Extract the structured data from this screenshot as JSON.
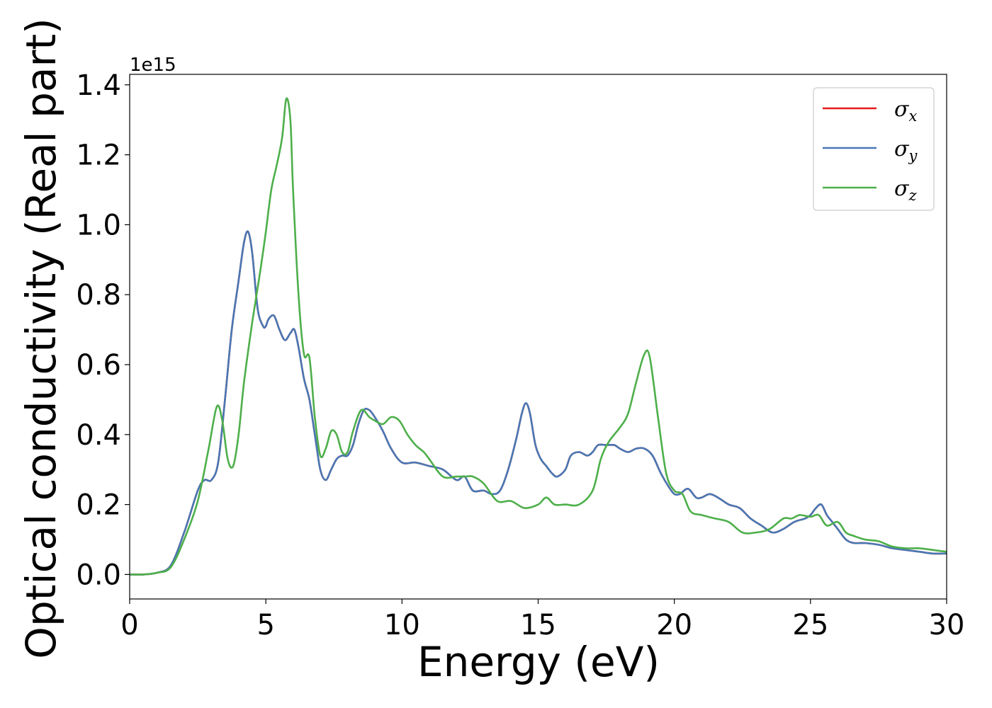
{
  "chart_data": {
    "type": "line",
    "xlabel": "Energy (eV)",
    "ylabel": "Optical conductivity (Real part)",
    "y_offset_label": "1e15",
    "xlim": [
      0,
      30
    ],
    "ylim": [
      -0.07,
      1.43
    ],
    "x_ticks": [
      0,
      5,
      10,
      15,
      20,
      25,
      30
    ],
    "x_tick_labels": [
      "0",
      "5",
      "10",
      "15",
      "20",
      "25",
      "30"
    ],
    "y_ticks": [
      0.0,
      0.2,
      0.4,
      0.6,
      0.8,
      1.0,
      1.2,
      1.4
    ],
    "y_tick_labels": [
      "0.0",
      "0.2",
      "0.4",
      "0.6",
      "0.8",
      "1.0",
      "1.2",
      "1.4"
    ],
    "grid": false,
    "legend_position": "top-right",
    "series": [
      {
        "name": "σx",
        "legend_symbol": "σ",
        "legend_subscript": "x",
        "color": "#e41a1c",
        "x": [
          0,
          0.5,
          1.0,
          1.5,
          2.0,
          2.5,
          2.75,
          3.0,
          3.25,
          3.5,
          3.75,
          4.0,
          4.2,
          4.35,
          4.5,
          4.7,
          4.9,
          5.0,
          5.1,
          5.3,
          5.5,
          5.7,
          5.9,
          6.05,
          6.2,
          6.4,
          6.6,
          6.8,
          7.0,
          7.2,
          7.4,
          7.6,
          7.8,
          8.0,
          8.2,
          8.4,
          8.6,
          8.8,
          9.0,
          9.3,
          9.6,
          10.0,
          10.5,
          11.0,
          11.5,
          12.0,
          12.3,
          12.6,
          13.0,
          13.3,
          13.6,
          13.9,
          14.2,
          14.4,
          14.55,
          14.7,
          14.9,
          15.1,
          15.3,
          15.5,
          15.7,
          16.0,
          16.2,
          16.5,
          16.8,
          17.0,
          17.2,
          17.5,
          17.8,
          18.0,
          18.3,
          18.6,
          18.9,
          19.2,
          19.5,
          19.8,
          20.0,
          20.2,
          20.5,
          20.8,
          21.0,
          21.3,
          21.6,
          22.0,
          22.4,
          22.8,
          23.2,
          23.6,
          24.0,
          24.4,
          24.8,
          25.0,
          25.2,
          25.4,
          25.6,
          25.8,
          26.0,
          26.3,
          26.6,
          27.0,
          27.5,
          28.0,
          28.5,
          29.0,
          29.5,
          30.0
        ],
        "y": [
          0.0,
          0.0,
          0.005,
          0.025,
          0.12,
          0.24,
          0.27,
          0.27,
          0.32,
          0.5,
          0.7,
          0.84,
          0.95,
          0.98,
          0.92,
          0.76,
          0.71,
          0.71,
          0.73,
          0.74,
          0.7,
          0.67,
          0.69,
          0.7,
          0.65,
          0.56,
          0.5,
          0.4,
          0.3,
          0.27,
          0.3,
          0.33,
          0.34,
          0.34,
          0.37,
          0.43,
          0.47,
          0.47,
          0.45,
          0.41,
          0.36,
          0.32,
          0.32,
          0.31,
          0.3,
          0.27,
          0.28,
          0.24,
          0.24,
          0.23,
          0.24,
          0.3,
          0.39,
          0.46,
          0.49,
          0.46,
          0.37,
          0.33,
          0.31,
          0.29,
          0.28,
          0.3,
          0.34,
          0.35,
          0.34,
          0.35,
          0.37,
          0.37,
          0.37,
          0.36,
          0.35,
          0.36,
          0.36,
          0.34,
          0.29,
          0.25,
          0.23,
          0.23,
          0.245,
          0.22,
          0.22,
          0.23,
          0.22,
          0.2,
          0.19,
          0.16,
          0.14,
          0.12,
          0.13,
          0.15,
          0.16,
          0.17,
          0.19,
          0.2,
          0.17,
          0.15,
          0.13,
          0.1,
          0.09,
          0.09,
          0.085,
          0.075,
          0.07,
          0.065,
          0.06,
          0.06
        ]
      },
      {
        "name": "σy",
        "legend_symbol": "σ",
        "legend_subscript": "y",
        "color": "#4878b4",
        "x": [
          0,
          0.5,
          1.0,
          1.5,
          2.0,
          2.5,
          2.75,
          3.0,
          3.25,
          3.5,
          3.75,
          4.0,
          4.2,
          4.35,
          4.5,
          4.7,
          4.9,
          5.0,
          5.1,
          5.3,
          5.5,
          5.7,
          5.9,
          6.05,
          6.2,
          6.4,
          6.6,
          6.8,
          7.0,
          7.2,
          7.4,
          7.6,
          7.8,
          8.0,
          8.2,
          8.4,
          8.6,
          8.8,
          9.0,
          9.3,
          9.6,
          10.0,
          10.5,
          11.0,
          11.5,
          12.0,
          12.3,
          12.6,
          13.0,
          13.3,
          13.6,
          13.9,
          14.2,
          14.4,
          14.55,
          14.7,
          14.9,
          15.1,
          15.3,
          15.5,
          15.7,
          16.0,
          16.2,
          16.5,
          16.8,
          17.0,
          17.2,
          17.5,
          17.8,
          18.0,
          18.3,
          18.6,
          18.9,
          19.2,
          19.5,
          19.8,
          20.0,
          20.2,
          20.5,
          20.8,
          21.0,
          21.3,
          21.6,
          22.0,
          22.4,
          22.8,
          23.2,
          23.6,
          24.0,
          24.4,
          24.8,
          25.0,
          25.2,
          25.4,
          25.6,
          25.8,
          26.0,
          26.3,
          26.6,
          27.0,
          27.5,
          28.0,
          28.5,
          29.0,
          29.5,
          30.0
        ],
        "y": [
          0.0,
          0.0,
          0.005,
          0.025,
          0.12,
          0.24,
          0.27,
          0.27,
          0.32,
          0.5,
          0.7,
          0.84,
          0.95,
          0.98,
          0.92,
          0.76,
          0.71,
          0.71,
          0.73,
          0.74,
          0.7,
          0.67,
          0.69,
          0.7,
          0.65,
          0.56,
          0.5,
          0.4,
          0.3,
          0.27,
          0.3,
          0.33,
          0.34,
          0.34,
          0.37,
          0.43,
          0.47,
          0.47,
          0.45,
          0.41,
          0.36,
          0.32,
          0.32,
          0.31,
          0.3,
          0.27,
          0.28,
          0.24,
          0.24,
          0.23,
          0.24,
          0.3,
          0.39,
          0.46,
          0.49,
          0.46,
          0.37,
          0.33,
          0.31,
          0.29,
          0.28,
          0.3,
          0.34,
          0.35,
          0.34,
          0.35,
          0.37,
          0.37,
          0.37,
          0.36,
          0.35,
          0.36,
          0.36,
          0.34,
          0.29,
          0.25,
          0.23,
          0.23,
          0.245,
          0.22,
          0.22,
          0.23,
          0.22,
          0.2,
          0.19,
          0.16,
          0.14,
          0.12,
          0.13,
          0.15,
          0.16,
          0.17,
          0.19,
          0.2,
          0.17,
          0.15,
          0.13,
          0.1,
          0.09,
          0.09,
          0.085,
          0.075,
          0.07,
          0.065,
          0.06,
          0.06
        ]
      },
      {
        "name": "σz",
        "legend_symbol": "σ",
        "legend_subscript": "z",
        "color": "#4daf4a",
        "x": [
          0,
          0.5,
          1.0,
          1.5,
          2.0,
          2.5,
          2.9,
          3.2,
          3.4,
          3.6,
          3.8,
          4.0,
          4.2,
          4.5,
          4.8,
          5.0,
          5.2,
          5.4,
          5.6,
          5.75,
          5.9,
          6.0,
          6.2,
          6.4,
          6.6,
          6.8,
          7.0,
          7.2,
          7.4,
          7.6,
          7.8,
          8.0,
          8.2,
          8.5,
          8.8,
          9.0,
          9.3,
          9.6,
          9.9,
          10.2,
          10.5,
          10.8,
          11.0,
          11.5,
          12.0,
          12.3,
          12.6,
          13.0,
          13.5,
          14.0,
          14.5,
          15.0,
          15.3,
          15.6,
          16.0,
          16.5,
          17.0,
          17.3,
          17.6,
          18.0,
          18.3,
          18.6,
          18.9,
          19.1,
          19.4,
          19.7,
          20.0,
          20.3,
          20.6,
          21.0,
          21.5,
          22.0,
          22.5,
          23.0,
          23.5,
          24.0,
          24.3,
          24.6,
          25.0,
          25.3,
          25.6,
          26.0,
          26.3,
          26.6,
          27.0,
          27.5,
          28.0,
          28.5,
          29.0,
          29.5,
          30.0
        ],
        "y": [
          0.0,
          0.0,
          0.005,
          0.02,
          0.1,
          0.21,
          0.36,
          0.48,
          0.44,
          0.33,
          0.31,
          0.4,
          0.55,
          0.72,
          0.87,
          0.98,
          1.1,
          1.17,
          1.25,
          1.36,
          1.3,
          1.1,
          0.8,
          0.63,
          0.62,
          0.45,
          0.34,
          0.36,
          0.41,
          0.4,
          0.35,
          0.35,
          0.41,
          0.47,
          0.45,
          0.44,
          0.43,
          0.45,
          0.44,
          0.4,
          0.37,
          0.35,
          0.33,
          0.28,
          0.28,
          0.28,
          0.28,
          0.26,
          0.21,
          0.21,
          0.19,
          0.2,
          0.22,
          0.2,
          0.2,
          0.2,
          0.24,
          0.33,
          0.38,
          0.42,
          0.46,
          0.55,
          0.63,
          0.62,
          0.45,
          0.29,
          0.24,
          0.23,
          0.18,
          0.17,
          0.16,
          0.15,
          0.12,
          0.12,
          0.13,
          0.16,
          0.16,
          0.17,
          0.165,
          0.17,
          0.14,
          0.15,
          0.12,
          0.11,
          0.1,
          0.095,
          0.08,
          0.075,
          0.075,
          0.07,
          0.065
        ]
      }
    ]
  }
}
